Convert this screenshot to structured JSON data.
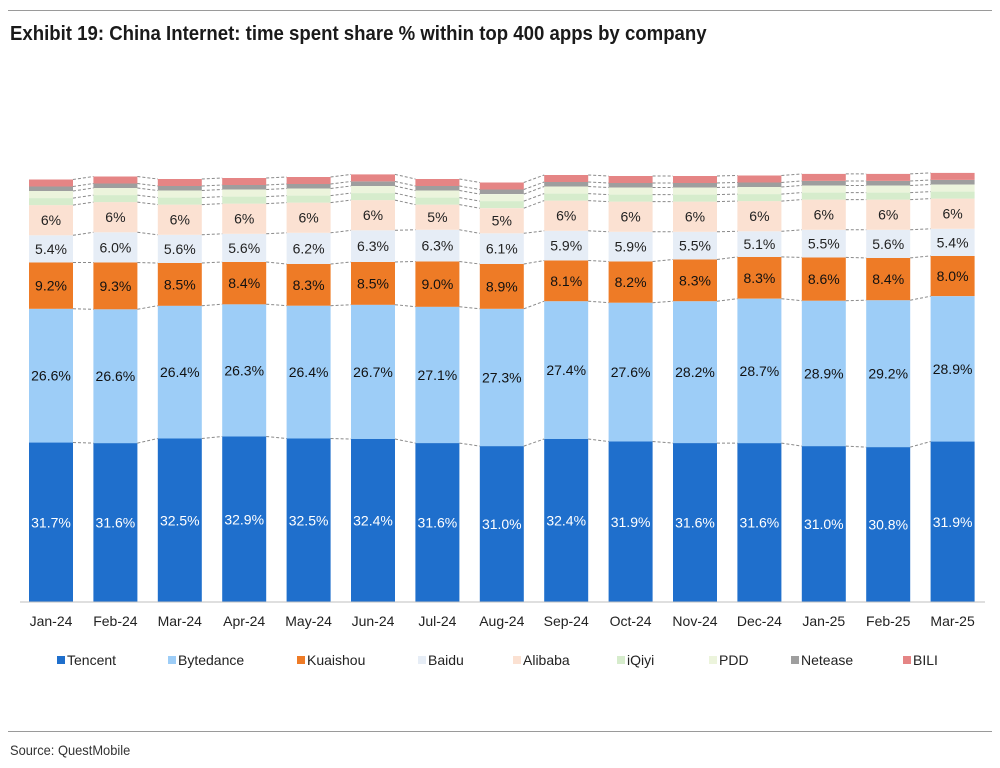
{
  "title": "Exhibit 19: China Internet: time spent share % within top 400 apps by company",
  "source": "Source: QuestMobile",
  "chart_data": {
    "type": "bar",
    "stacked": true,
    "normalized_to": 100,
    "title": "Exhibit 19: China Internet: time spent share % within top 400 apps by company",
    "xlabel": "",
    "ylabel": "",
    "ylim": [
      0,
      100
    ],
    "grid": false,
    "legend_position": "bottom",
    "categories": [
      "Jan-24",
      "Feb-24",
      "Mar-24",
      "Apr-24",
      "May-24",
      "Jun-24",
      "Jul-24",
      "Aug-24",
      "Sep-24",
      "Oct-24",
      "Nov-24",
      "Dec-24",
      "Jan-25",
      "Feb-25",
      "Mar-25"
    ],
    "series": [
      {
        "name": "Tencent",
        "color": "#1f6fcc",
        "label_color": "#ffffff",
        "values": [
          31.7,
          31.6,
          32.5,
          32.9,
          32.5,
          32.4,
          31.6,
          31.0,
          32.4,
          31.9,
          31.6,
          31.6,
          31.0,
          30.8,
          31.9
        ],
        "labels": [
          "31.7%",
          "31.6%",
          "32.5%",
          "32.9%",
          "32.5%",
          "32.4%",
          "31.6%",
          "31.0%",
          "32.4%",
          "31.9%",
          "31.6%",
          "31.6%",
          "31.0%",
          "30.8%",
          "31.9%"
        ]
      },
      {
        "name": "Bytedance",
        "color": "#9dcdf7",
        "label_color": "#111111",
        "values": [
          26.6,
          26.6,
          26.4,
          26.3,
          26.4,
          26.7,
          27.1,
          27.3,
          27.4,
          27.6,
          28.2,
          28.7,
          28.9,
          29.2,
          28.9
        ],
        "labels": [
          "26.6%",
          "26.6%",
          "26.4%",
          "26.3%",
          "26.4%",
          "26.7%",
          "27.1%",
          "27.3%",
          "27.4%",
          "27.6%",
          "28.2%",
          "28.7%",
          "28.9%",
          "29.2%",
          "28.9%"
        ]
      },
      {
        "name": "Kuaishou",
        "color": "#ee7b26",
        "label_color": "#111111",
        "values": [
          9.2,
          9.3,
          8.5,
          8.4,
          8.3,
          8.5,
          9.0,
          8.9,
          8.1,
          8.2,
          8.3,
          8.3,
          8.6,
          8.4,
          8.0
        ],
        "labels": [
          "9.2%",
          "9.3%",
          "8.5%",
          "8.4%",
          "8.3%",
          "8.5%",
          "9.0%",
          "8.9%",
          "8.1%",
          "8.2%",
          "8.3%",
          "8.3%",
          "8.6%",
          "8.4%",
          "8.0%"
        ]
      },
      {
        "name": "Baidu",
        "color": "#e6edf6",
        "label_color": "#222222",
        "values": [
          5.4,
          6.0,
          5.6,
          5.6,
          6.2,
          6.3,
          6.3,
          6.1,
          5.9,
          5.9,
          5.5,
          5.1,
          5.5,
          5.6,
          5.4
        ],
        "labels": [
          "5.4%",
          "6.0%",
          "5.6%",
          "5.6%",
          "6.2%",
          "6.3%",
          "6.3%",
          "6.1%",
          "5.9%",
          "5.9%",
          "5.5%",
          "5.1%",
          "5.5%",
          "5.6%",
          "5.4%"
        ]
      },
      {
        "name": "Alibaba",
        "color": "#fbe1d2",
        "label_color": "#222222",
        "values": [
          6,
          6,
          6,
          6,
          6,
          6,
          5,
          5,
          6,
          6,
          6,
          6,
          6,
          6,
          6
        ],
        "labels": [
          "6%",
          "6%",
          "6%",
          "6%",
          "6%",
          "6%",
          "5%",
          "5%",
          "6%",
          "6%",
          "6%",
          "6%",
          "6%",
          "6%",
          "6%"
        ]
      },
      {
        "name": "iQiyi",
        "color": "#d6eccc",
        "label_color": "#222222",
        "values": [
          1.4,
          1.4,
          1.4,
          1.4,
          1.4,
          1.4,
          1.4,
          1.4,
          1.4,
          1.4,
          1.4,
          1.4,
          1.4,
          1.4,
          1.4
        ],
        "labels": []
      },
      {
        "name": "PDD",
        "color": "#ecf4dc",
        "label_color": "#222222",
        "values": [
          1.4,
          1.4,
          1.4,
          1.4,
          1.4,
          1.4,
          1.4,
          1.4,
          1.4,
          1.4,
          1.4,
          1.4,
          1.4,
          1.4,
          1.4
        ],
        "labels": []
      },
      {
        "name": "Netease",
        "color": "#9e9e9e",
        "label_color": "#222222",
        "values": [
          0.9,
          0.9,
          0.9,
          0.9,
          0.9,
          0.9,
          0.9,
          0.9,
          0.9,
          0.9,
          0.9,
          0.9,
          0.9,
          0.9,
          0.9
        ],
        "labels": []
      },
      {
        "name": "BILI",
        "color": "#e58585",
        "label_color": "#222222",
        "values": [
          1.4,
          1.4,
          1.4,
          1.4,
          1.4,
          1.4,
          1.4,
          1.4,
          1.4,
          1.4,
          1.4,
          1.4,
          1.4,
          1.4,
          1.4
        ],
        "labels": []
      }
    ]
  }
}
